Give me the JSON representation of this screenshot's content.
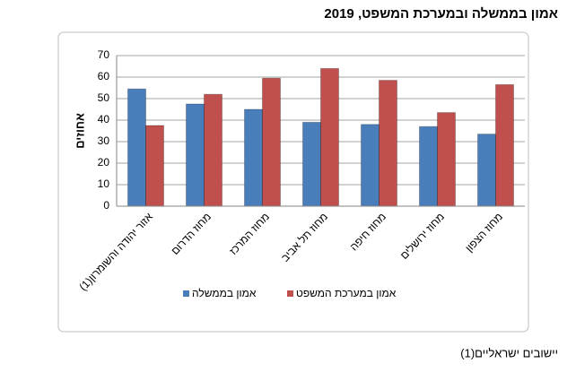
{
  "chart_data": {
    "type": "bar",
    "title": "אמון בממשלה ובמערכת המשפט, 2019",
    "y_label": "אחוזים",
    "categories": [
      "אזור יהודה והשומרון(1)",
      "מחוז הדרום",
      "מחוז המרכז",
      "מחוז תל אביב",
      "מחוז חיפה",
      "מחוז ירושלים",
      "מחוז הצפון"
    ],
    "series": [
      {
        "name": "אמון בממשלה",
        "color": "#4a7ebb",
        "values": [
          54.5,
          47.5,
          45,
          39,
          38,
          37,
          33.5
        ]
      },
      {
        "name": "אמון במערכת המשפט",
        "color": "#c0504d",
        "values": [
          37.5,
          52,
          59.5,
          64,
          58.5,
          43.5,
          56.5
        ]
      }
    ],
    "ylim": [
      0,
      70
    ],
    "yticks": [
      0,
      10,
      20,
      30,
      40,
      50,
      60,
      70
    ],
    "grid": true,
    "footnote": "יישובים ישראליים(1)"
  }
}
